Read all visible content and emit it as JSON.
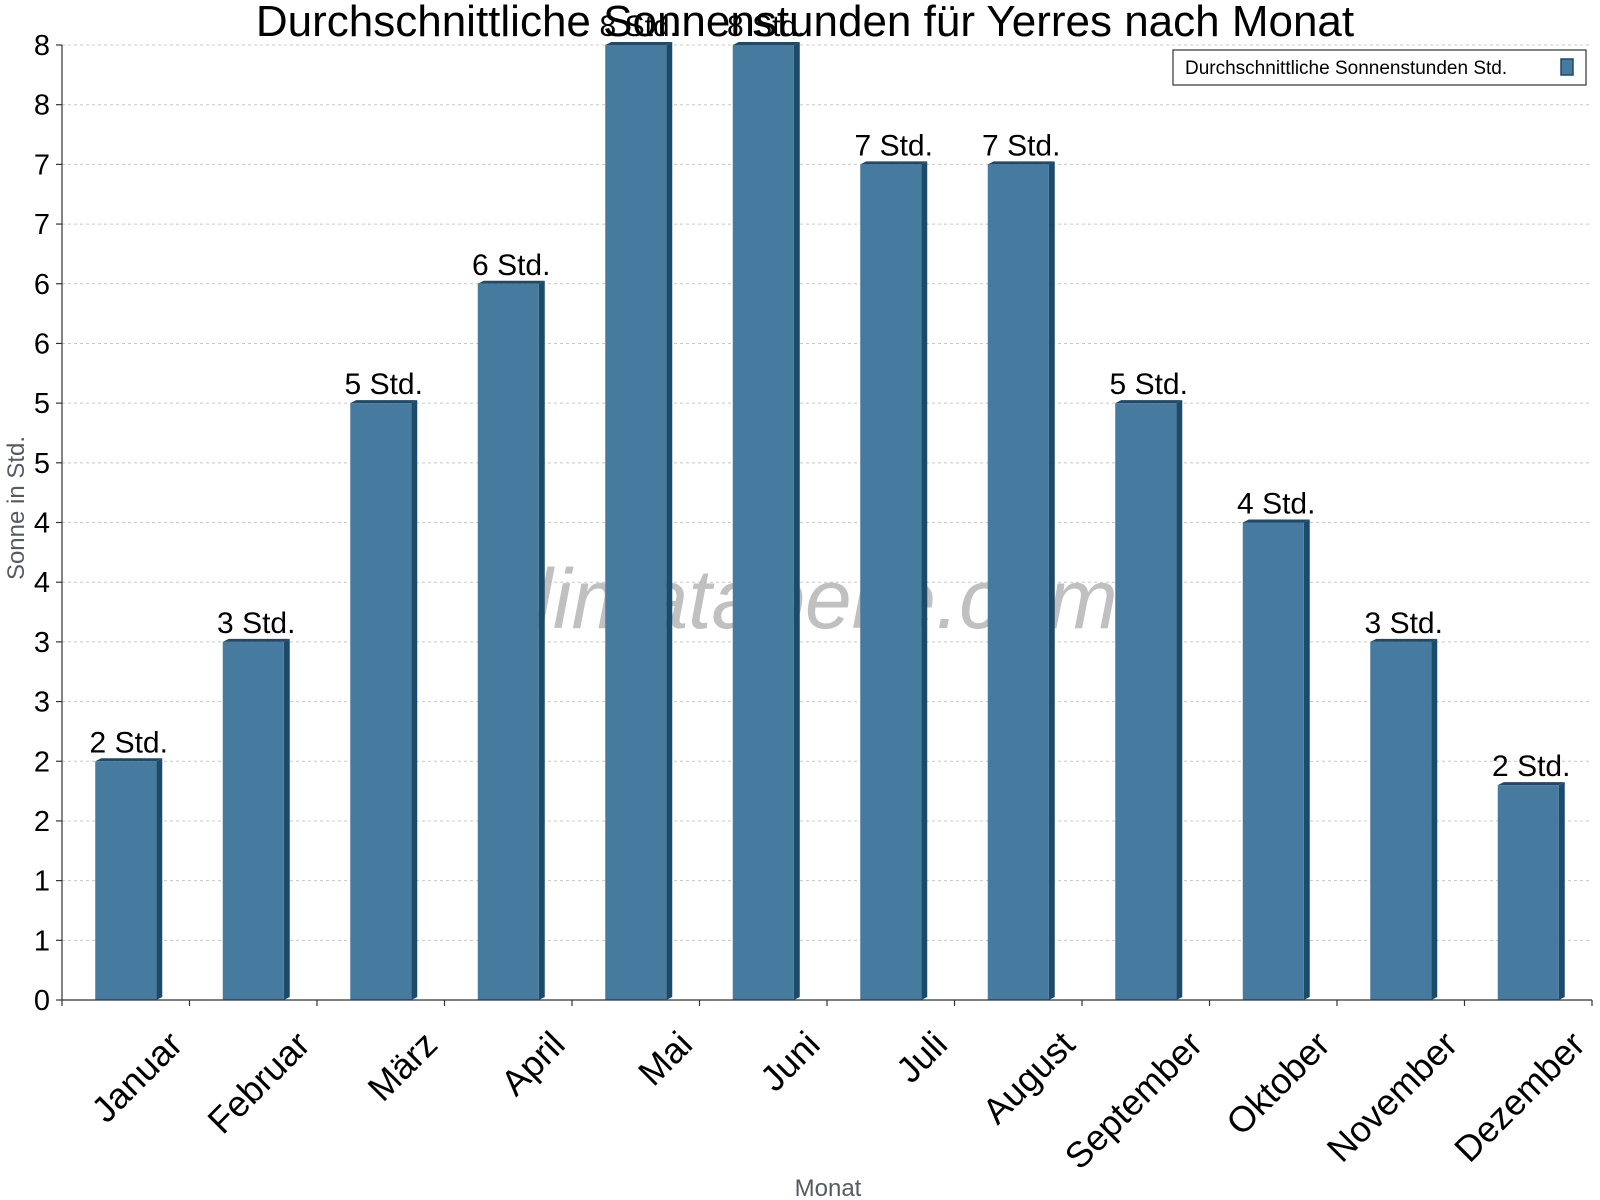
{
  "chart_data": {
    "type": "bar",
    "title": "Durchschnittliche Sonnenstunden für Yerres nach Monat",
    "xlabel": "Monat",
    "ylabel": "Sonne in Std.",
    "categories": [
      "Januar",
      "Februar",
      "März",
      "April",
      "Mai",
      "Juni",
      "Juli",
      "August",
      "September",
      "Oktober",
      "November",
      "Dezember"
    ],
    "series": [
      {
        "name": "Durchschnittliche Sonnenstunden Std.",
        "values": [
          2.0,
          3.0,
          5.0,
          6.0,
          8.0,
          8.0,
          7.0,
          7.0,
          5.0,
          4.0,
          3.0,
          1.8
        ],
        "data_labels": [
          "2 Std.",
          "3 Std.",
          "5 Std.",
          "6 Std.",
          "8 Std.",
          "8 Std.",
          "7 Std.",
          "7 Std.",
          "5 Std.",
          "4 Std.",
          "3 Std.",
          "2 Std."
        ]
      }
    ],
    "ylim": [
      0,
      8
    ],
    "y_ticks": [
      0,
      0.5,
      1,
      1.5,
      2,
      2.5,
      3,
      3.5,
      4,
      4.5,
      5,
      5.5,
      6,
      6.5,
      7,
      7.5,
      8
    ],
    "y_tick_labels": [
      "0",
      "1",
      "1",
      "2",
      "2",
      "3",
      "3",
      "4",
      "4",
      "5",
      "5",
      "6",
      "6",
      "7",
      "7",
      "8",
      "8"
    ],
    "grid": true,
    "legend_position": "top-right",
    "bar_color": "#467a9e",
    "bar_edge_color": "#1b4a6b",
    "watermark": "klimatabelle.com"
  }
}
